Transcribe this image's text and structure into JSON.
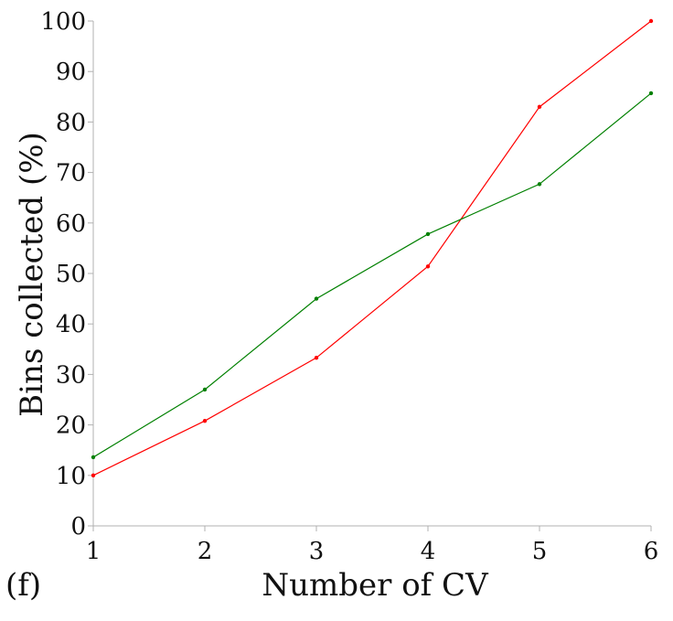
{
  "chart_data": {
    "type": "line",
    "panel_label": "(f)",
    "xlabel": "Number of CV",
    "ylabel": "Bins collected (%)",
    "x": [
      1,
      2,
      3,
      4,
      5,
      6
    ],
    "xlim": [
      1,
      6
    ],
    "ylim": [
      0,
      100
    ],
    "xticks": [
      "1",
      "2",
      "3",
      "4",
      "5",
      "6"
    ],
    "yticks": [
      "0",
      "10",
      "20",
      "30",
      "40",
      "50",
      "60",
      "70",
      "80",
      "90",
      "100"
    ],
    "grid": false,
    "legend": "none",
    "series": [
      {
        "color": "#ff0000",
        "values": [
          10,
          20.8,
          33.3,
          51.4,
          83,
          100
        ]
      },
      {
        "color": "#008000",
        "values": [
          13.6,
          27,
          45,
          57.8,
          67.7,
          85.7
        ]
      }
    ]
  }
}
